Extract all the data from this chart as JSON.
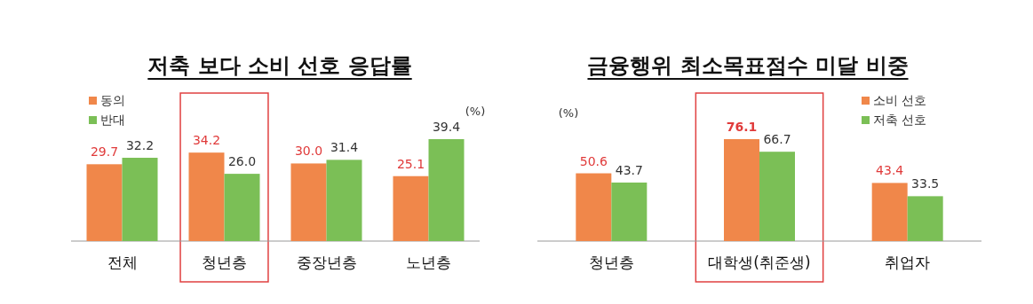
{
  "chart_data": [
    {
      "type": "bar",
      "title": "저축 보다 소비 선호 응답률",
      "categories": [
        "전체",
        "청년층",
        "중장년층",
        "노년층"
      ],
      "series": [
        {
          "name": "동의",
          "color": "#f0874a",
          "values": [
            29.7,
            34.2,
            30.0,
            25.1
          ],
          "value_labels": [
            "29.7",
            "34.2",
            "30.0",
            "25.1"
          ]
        },
        {
          "name": "반대",
          "color": "#7bbf56",
          "values": [
            32.2,
            26.0,
            31.4,
            39.4
          ],
          "value_labels": [
            "32.2",
            "26.0",
            "31.4",
            "39.4"
          ]
        }
      ],
      "legend": "top left",
      "annotations": [
        "(%)"
      ]
    },
    {
      "type": "bar",
      "title": "금융행위 최소목표점수 미달 비중",
      "categories": [
        "청년층",
        "대학생(취준생)",
        "취업자"
      ],
      "series": [
        {
          "name": "소비 선호",
          "color": "#f0874a",
          "values": [
            50.6,
            76.1,
            43.4
          ],
          "value_labels": [
            "50.6",
            "76.1",
            "43.4"
          ]
        },
        {
          "name": "저축 선호",
          "color": "#7bbf56",
          "values": [
            43.7,
            66.7,
            33.5
          ],
          "value_labels": [
            "43.7",
            "66.7",
            "33.5"
          ]
        }
      ],
      "legend": "top right",
      "annotations": [
        "(%)"
      ]
    }
  ]
}
